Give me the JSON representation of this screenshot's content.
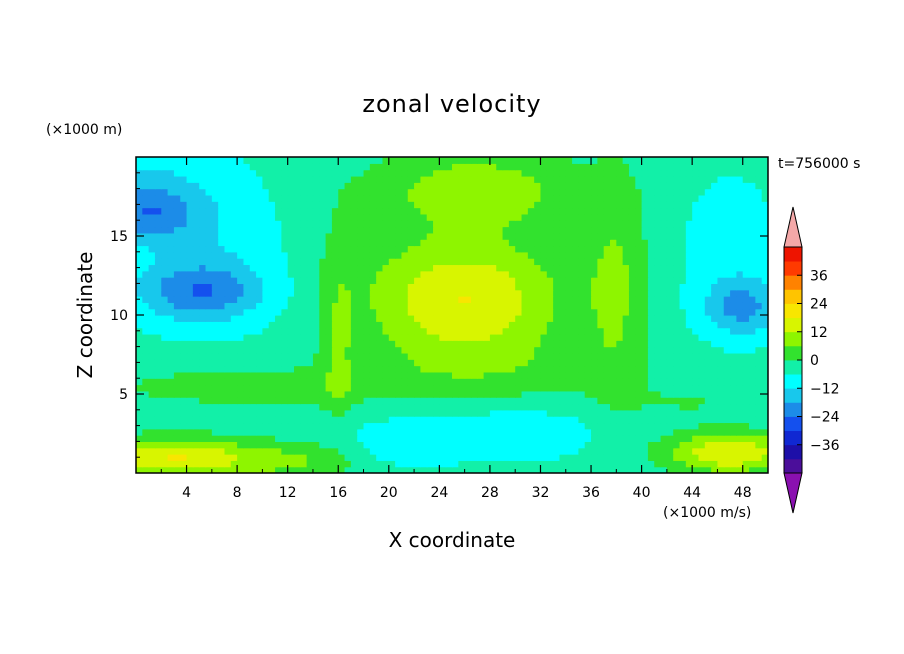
{
  "chart_data": {
    "type": "heatmap",
    "title": "zonal velocity",
    "xlabel": "X coordinate",
    "ylabel": "Z coordinate",
    "x_unit": "(×1000 m/s)",
    "y_unit": "(×1000 m)",
    "time_label": "t=756000 s",
    "xlim": [
      0,
      50
    ],
    "ylim": [
      0,
      20
    ],
    "x_ticks": [
      "4",
      "8",
      "12",
      "16",
      "20",
      "24",
      "28",
      "32",
      "36",
      "40",
      "44",
      "48"
    ],
    "y_ticks": [
      "5",
      "10",
      "15"
    ],
    "colorbar": {
      "tick_labels": [
        "36",
        "24",
        "12",
        "0",
        "−12",
        "−24",
        "−36"
      ],
      "tick_values": [
        36,
        24,
        12,
        0,
        -12,
        -24,
        -36
      ],
      "levels": [
        -42,
        -36,
        -30,
        -24,
        -18,
        -12,
        -6,
        0,
        6,
        12,
        18,
        24,
        30,
        36,
        42
      ],
      "colors": [
        "#4b0e9a",
        "#1d0fa8",
        "#1028d2",
        "#1450ee",
        "#1c8ce8",
        "#18c8ec",
        "#00ffff",
        "#12f0a8",
        "#32e22e",
        "#8ef500",
        "#d8f500",
        "#f8e600",
        "#ffc400",
        "#ff8200",
        "#ff3a00",
        "#ee1400"
      ],
      "under_color": "#8a10b0",
      "over_color": "#f4a8a8"
    },
    "grid": false
  }
}
